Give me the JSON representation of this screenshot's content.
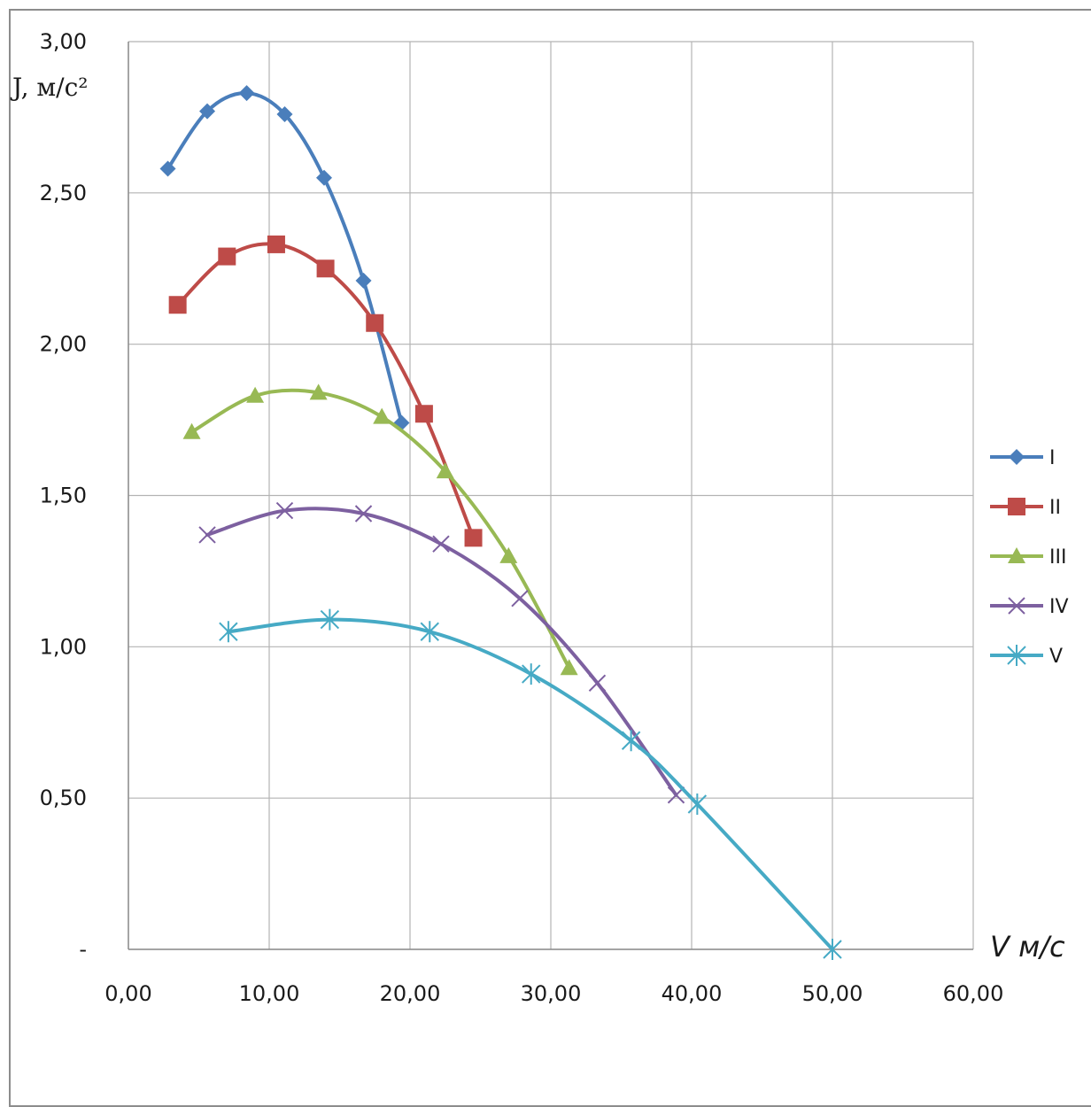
{
  "chart_data": {
    "type": "line",
    "ylabel": "J, м/с²",
    "xlabel": "V м/с",
    "xlim": [
      0,
      60
    ],
    "ylim": [
      0,
      3
    ],
    "x_ticks": [
      0,
      10,
      20,
      30,
      40,
      50,
      60
    ],
    "x_tick_labels": [
      "0,00",
      "10,00",
      "20,00",
      "30,00",
      "40,00",
      "50,00",
      "60,00"
    ],
    "y_ticks": [
      0,
      0.5,
      1.0,
      1.5,
      2.0,
      2.5,
      3.0
    ],
    "y_tick_labels": [
      "-",
      "0,50",
      "1,00",
      "1,50",
      "2,00",
      "2,50",
      "3,00"
    ],
    "grid": true,
    "legend_position": "right",
    "series": [
      {
        "name": "I",
        "color": "#4a7ebb",
        "marker": "diamond",
        "x": [
          2.8,
          5.6,
          8.4,
          11.1,
          13.9,
          16.7,
          19.4
        ],
        "y": [
          2.58,
          2.77,
          2.83,
          2.76,
          2.55,
          2.21,
          1.74
        ]
      },
      {
        "name": "II",
        "color": "#be4b48",
        "marker": "square",
        "x": [
          3.5,
          7.0,
          10.5,
          14.0,
          17.5,
          21.0,
          24.5
        ],
        "y": [
          2.13,
          2.29,
          2.33,
          2.25,
          2.07,
          1.77,
          1.36
        ]
      },
      {
        "name": "III",
        "color": "#98b954",
        "marker": "triangle",
        "x": [
          4.5,
          9.0,
          13.5,
          18.0,
          22.5,
          27.0,
          31.3
        ],
        "y": [
          1.71,
          1.83,
          1.84,
          1.76,
          1.58,
          1.3,
          0.93
        ]
      },
      {
        "name": "IV",
        "color": "#7d60a0",
        "marker": "x",
        "x": [
          5.6,
          11.1,
          16.7,
          22.2,
          27.8,
          33.3,
          38.9
        ],
        "y": [
          1.37,
          1.45,
          1.44,
          1.34,
          1.16,
          0.88,
          0.51
        ]
      },
      {
        "name": "V",
        "color": "#46aac5",
        "marker": "star",
        "x": [
          7.1,
          14.3,
          21.4,
          28.6,
          35.7,
          40.4,
          50.0
        ],
        "y": [
          1.05,
          1.09,
          1.05,
          0.91,
          0.69,
          0.48,
          0.0
        ]
      }
    ]
  }
}
